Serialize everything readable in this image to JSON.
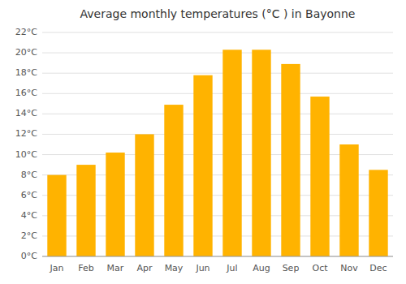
{
  "chart_data": {
    "type": "bar",
    "title": "Average monthly temperatures (°C ) in Bayonne",
    "categories": [
      "Jan",
      "Feb",
      "Mar",
      "Apr",
      "May",
      "Jun",
      "Jul",
      "Aug",
      "Sep",
      "Oct",
      "Nov",
      "Dec"
    ],
    "values": [
      8.0,
      9.0,
      10.2,
      12.0,
      14.9,
      17.8,
      20.3,
      20.3,
      18.9,
      15.7,
      11.0,
      8.5
    ],
    "color": "#FFB300",
    "ylim": [
      0,
      22
    ],
    "yticks": [
      {
        "value": 0,
        "label": "0°C"
      },
      {
        "value": 2,
        "label": "2°C"
      },
      {
        "value": 4,
        "label": "4°C"
      },
      {
        "value": 6,
        "label": "6°C"
      },
      {
        "value": 8,
        "label": "8°C"
      },
      {
        "value": 10,
        "label": "10°C"
      },
      {
        "value": 12,
        "label": "12°C"
      },
      {
        "value": 14,
        "label": "14°C"
      },
      {
        "value": 16,
        "label": "16°C"
      },
      {
        "value": 18,
        "label": "18°C"
      },
      {
        "value": 20,
        "label": "20°C"
      },
      {
        "value": 22,
        "label": "22°C"
      }
    ],
    "grid": true
  }
}
